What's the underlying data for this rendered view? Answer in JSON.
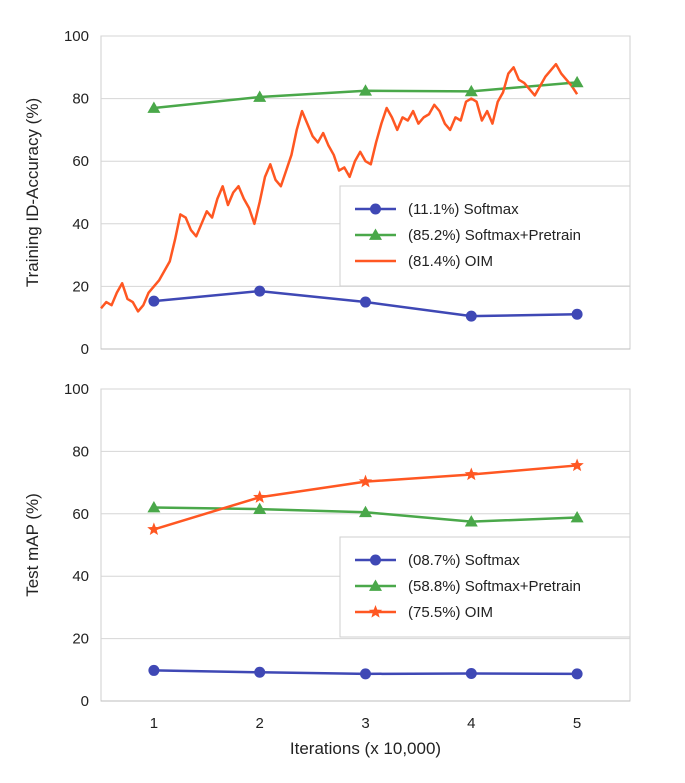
{
  "chart_data": [
    {
      "type": "line",
      "ylabel": "Training ID-Accuracy (%)",
      "xlabel": "",
      "ylim": [
        0,
        100
      ],
      "xlim": [
        0.5,
        5.5
      ],
      "yticks": [
        "0",
        "20",
        "40",
        "60",
        "80",
        "100"
      ],
      "xticks": [],
      "legend_position": "center-right",
      "grid": true,
      "series": [
        {
          "name": "(11.1%) Softmax",
          "color": "#3f48b5",
          "marker": "circle",
          "x": [
            1,
            2,
            3,
            4,
            5
          ],
          "y": [
            15.3,
            18.5,
            15.0,
            10.5,
            11.1
          ]
        },
        {
          "name": "(85.2%) Softmax+Pretrain",
          "color": "#4aa84a",
          "marker": "triangle",
          "x": [
            1,
            2,
            3,
            4,
            5
          ],
          "y": [
            77,
            80.5,
            82.5,
            82.3,
            85.2
          ]
        },
        {
          "name": "(81.4%) OIM",
          "color": "#ff5722",
          "marker": "none",
          "x": [
            0.5,
            0.55,
            0.6,
            0.65,
            0.7,
            0.75,
            0.8,
            0.85,
            0.9,
            0.95,
            1.0,
            1.05,
            1.1,
            1.15,
            1.2,
            1.25,
            1.3,
            1.35,
            1.4,
            1.45,
            1.5,
            1.55,
            1.6,
            1.65,
            1.7,
            1.75,
            1.8,
            1.85,
            1.9,
            1.95,
            2.0,
            2.05,
            2.1,
            2.15,
            2.2,
            2.25,
            2.3,
            2.35,
            2.4,
            2.45,
            2.5,
            2.55,
            2.6,
            2.65,
            2.7,
            2.75,
            2.8,
            2.85,
            2.9,
            2.95,
            3.0,
            3.05,
            3.1,
            3.15,
            3.2,
            3.25,
            3.3,
            3.35,
            3.4,
            3.45,
            3.5,
            3.55,
            3.6,
            3.65,
            3.7,
            3.75,
            3.8,
            3.85,
            3.9,
            3.95,
            4.0,
            4.05,
            4.1,
            4.15,
            4.2,
            4.25,
            4.3,
            4.35,
            4.4,
            4.45,
            4.5,
            4.55,
            4.6,
            4.65,
            4.7,
            4.75,
            4.8,
            4.85,
            4.9,
            4.95,
            5.0
          ],
          "y": [
            13,
            15,
            14,
            18,
            21,
            16,
            15,
            12,
            14,
            18,
            20,
            22,
            25,
            28,
            35,
            43,
            42,
            38,
            36,
            40,
            44,
            42,
            48,
            52,
            46,
            50,
            52,
            48,
            45,
            40,
            47,
            55,
            59,
            54,
            52,
            57,
            62,
            70,
            76,
            72,
            68,
            66,
            69,
            65,
            62,
            57,
            58,
            55,
            60,
            63,
            60,
            59,
            66,
            72,
            77,
            74,
            70,
            74,
            73,
            76,
            72,
            74,
            75,
            78,
            76,
            72,
            70,
            74,
            73,
            79,
            80,
            79,
            73,
            76,
            72,
            79,
            82,
            88,
            90,
            86,
            85,
            83,
            81,
            84,
            87,
            89,
            91,
            88,
            86,
            84,
            81.4
          ]
        }
      ]
    },
    {
      "type": "line",
      "ylabel": "Test mAP (%)",
      "xlabel": "Iterations (x 10,000)",
      "ylim": [
        0,
        100
      ],
      "xlim": [
        0.5,
        5.5
      ],
      "yticks": [
        "0",
        "20",
        "40",
        "60",
        "80",
        "100"
      ],
      "xticks": [
        "1",
        "2",
        "3",
        "4",
        "5"
      ],
      "legend_position": "bottom-right",
      "grid": true,
      "series": [
        {
          "name": "(08.7%) Softmax",
          "color": "#3f48b5",
          "marker": "circle",
          "x": [
            1,
            2,
            3,
            4,
            5
          ],
          "y": [
            9.8,
            9.2,
            8.7,
            8.8,
            8.7
          ]
        },
        {
          "name": "(58.8%) Softmax+Pretrain",
          "color": "#4aa84a",
          "marker": "triangle",
          "x": [
            1,
            2,
            3,
            4,
            5
          ],
          "y": [
            62,
            61.5,
            60.5,
            57.5,
            58.8
          ]
        },
        {
          "name": "(75.5%) OIM",
          "color": "#ff5722",
          "marker": "star",
          "x": [
            1,
            2,
            3,
            4,
            5
          ],
          "y": [
            55,
            65.3,
            70.3,
            72.6,
            75.5
          ]
        }
      ]
    }
  ]
}
